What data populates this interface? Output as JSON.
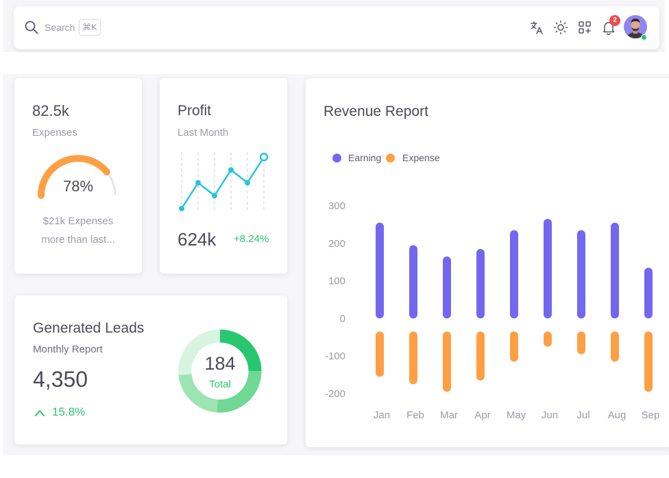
{
  "topbar": {
    "search_placeholder": "Search",
    "shortcut": "⌘K",
    "icons": [
      "translate-icon",
      "sun-icon",
      "apps-grid-icon",
      "bell-icon"
    ],
    "notification_count": "2"
  },
  "expenses_card": {
    "value": "82.5k",
    "label": "Expenses",
    "gauge_percent": "78%",
    "gauge_fraction": 0.78,
    "note_line1": "$21k Expenses",
    "note_line2": "more than last..."
  },
  "profit_card": {
    "title": "Profit",
    "subtitle": "Last Month",
    "value": "624k",
    "growth": "+8.24%",
    "sparkline": [
      1,
      3,
      2,
      4,
      3,
      5
    ],
    "color": "#25c5db"
  },
  "leads_card": {
    "title": "Generated Leads",
    "subtitle": "Monthly Report",
    "value": "4,350",
    "growth": "15.8%",
    "donut_total": "184",
    "donut_label": "Total"
  },
  "revenue_card": {
    "title": "Revenue Report"
  },
  "colors": {
    "earning": "#7367f0",
    "expense": "#ff9f43",
    "success": "#28c76f",
    "gauge": "#ff9f43"
  },
  "chart_data": {
    "type": "bar",
    "categories": [
      "Jan",
      "Feb",
      "Mar",
      "Apr",
      "May",
      "Jun",
      "Jul",
      "Aug",
      "Sep"
    ],
    "series": [
      {
        "name": "Earning",
        "values": [
          255,
          195,
          165,
          185,
          235,
          265,
          235,
          255,
          135
        ]
      },
      {
        "name": "Expense",
        "values": [
          -155,
          -175,
          -195,
          -165,
          -115,
          -75,
          -95,
          -115,
          -195
        ]
      }
    ],
    "yticks": [
      "300",
      "200",
      "100",
      "0",
      "-100",
      "-200"
    ],
    "ylim": [
      -200,
      300
    ],
    "legend": "top-left",
    "grid": false
  }
}
